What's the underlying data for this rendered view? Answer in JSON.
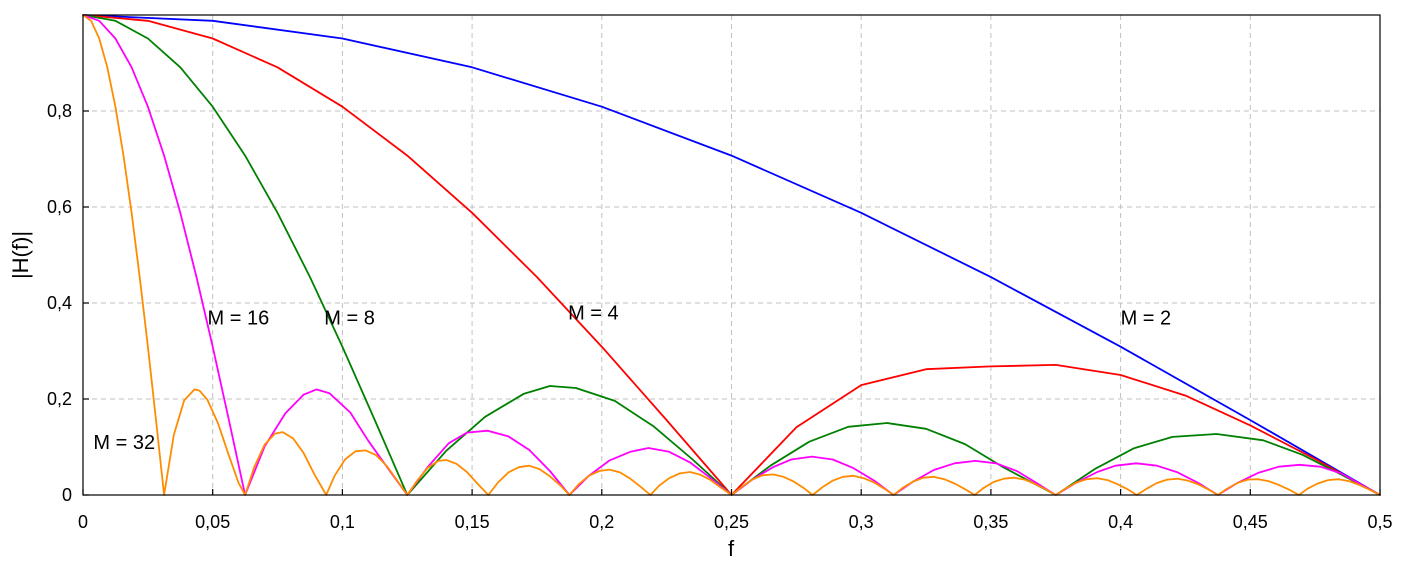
{
  "chart_data": {
    "type": "line",
    "xlabel": "f",
    "ylabel": "|H(f)|",
    "xlim": [
      0,
      0.5
    ],
    "ylim": [
      0,
      1
    ],
    "grid": true,
    "x_ticks": [
      {
        "value": 0,
        "label": "0"
      },
      {
        "value": 0.05,
        "label": "0,05"
      },
      {
        "value": 0.1,
        "label": "0,1"
      },
      {
        "value": 0.15,
        "label": "0,15"
      },
      {
        "value": 0.2,
        "label": "0,2"
      },
      {
        "value": 0.25,
        "label": "0,25"
      },
      {
        "value": 0.3,
        "label": "0,3"
      },
      {
        "value": 0.35,
        "label": "0,35"
      },
      {
        "value": 0.4,
        "label": "0,4"
      },
      {
        "value": 0.45,
        "label": "0,45"
      },
      {
        "value": 0.5,
        "label": "0,5"
      }
    ],
    "y_ticks": [
      {
        "value": 0,
        "label": "0"
      },
      {
        "value": 0.2,
        "label": "0,2"
      },
      {
        "value": 0.4,
        "label": "0,4"
      },
      {
        "value": 0.6,
        "label": "0,6"
      },
      {
        "value": 0.8,
        "label": "0,8"
      }
    ],
    "series": [
      {
        "name": "M = 2",
        "M": 2,
        "color": "#0000ff",
        "x": [
          0,
          0.05,
          0.1,
          0.15,
          0.2,
          0.25,
          0.3,
          0.35,
          0.4,
          0.45,
          0.5
        ],
        "y": [
          1.0,
          0.988,
          0.951,
          0.891,
          0.809,
          0.707,
          0.588,
          0.454,
          0.309,
          0.156,
          0.0
        ],
        "label_at": [
          0.4,
          0.37
        ]
      },
      {
        "name": "M = 4",
        "M": 4,
        "color": "#ff0000",
        "x": [
          0,
          0.025,
          0.05,
          0.075,
          0.1,
          0.125,
          0.15,
          0.175,
          0.2,
          0.225,
          0.25,
          0.275,
          0.3,
          0.325,
          0.35,
          0.375,
          0.4,
          0.425,
          0.45,
          0.475,
          0.5
        ],
        "y": [
          1.0,
          0.988,
          0.951,
          0.891,
          0.809,
          0.707,
          0.588,
          0.454,
          0.309,
          0.156,
          0.0,
          0.141,
          0.229,
          0.262,
          0.268,
          0.271,
          0.25,
          0.207,
          0.145,
          0.075,
          0.0
        ],
        "label_at": [
          0.187,
          0.38
        ]
      },
      {
        "name": "M = 8",
        "M": 8,
        "color": "#008000",
        "x": [
          0,
          0.0125,
          0.025,
          0.0375,
          0.05,
          0.0625,
          0.075,
          0.0875,
          0.1,
          0.1125,
          0.125,
          0.14,
          0.155,
          0.17,
          0.18,
          0.19,
          0.205,
          0.22,
          0.235,
          0.25,
          0.265,
          0.28,
          0.295,
          0.31,
          0.325,
          0.34,
          0.355,
          0.375,
          0.39,
          0.405,
          0.42,
          0.437,
          0.455,
          0.47,
          0.485,
          0.5
        ],
        "y": [
          1.0,
          0.988,
          0.951,
          0.891,
          0.809,
          0.707,
          0.588,
          0.454,
          0.309,
          0.156,
          0.0,
          0.092,
          0.163,
          0.211,
          0.227,
          0.223,
          0.196,
          0.143,
          0.074,
          0.0,
          0.061,
          0.111,
          0.142,
          0.15,
          0.138,
          0.106,
          0.057,
          0.0,
          0.054,
          0.097,
          0.121,
          0.127,
          0.114,
          0.084,
          0.043,
          0.0
        ],
        "label_at": [
          0.093,
          0.37
        ]
      },
      {
        "name": "M = 16",
        "M": 16,
        "color": "#ff00ff",
        "x": [
          0,
          0.00625,
          0.0125,
          0.01875,
          0.025,
          0.03125,
          0.0375,
          0.04375,
          0.05,
          0.05625,
          0.0625,
          0.07,
          0.078,
          0.085,
          0.09,
          0.095,
          0.103,
          0.11,
          0.118,
          0.125,
          0.133,
          0.141,
          0.148,
          0.156,
          0.164,
          0.172,
          0.18,
          0.1875,
          0.195,
          0.203,
          0.211,
          0.218,
          0.226,
          0.234,
          0.242,
          0.25,
          0.258,
          0.266,
          0.273,
          0.281,
          0.289,
          0.297,
          0.305,
          0.3125,
          0.32,
          0.328,
          0.336,
          0.344,
          0.352,
          0.36,
          0.367,
          0.375,
          0.383,
          0.391,
          0.398,
          0.406,
          0.414,
          0.422,
          0.43,
          0.4375,
          0.445,
          0.453,
          0.461,
          0.469,
          0.477,
          0.485,
          0.492,
          0.5
        ],
        "y": [
          1.0,
          0.988,
          0.951,
          0.891,
          0.809,
          0.707,
          0.588,
          0.454,
          0.309,
          0.156,
          0.0,
          0.101,
          0.17,
          0.209,
          0.22,
          0.212,
          0.172,
          0.113,
          0.052,
          0.0,
          0.059,
          0.108,
          0.13,
          0.134,
          0.122,
          0.094,
          0.05,
          0.0,
          0.04,
          0.072,
          0.09,
          0.098,
          0.09,
          0.068,
          0.035,
          0.0,
          0.032,
          0.058,
          0.074,
          0.08,
          0.074,
          0.056,
          0.03,
          0.0,
          0.028,
          0.052,
          0.066,
          0.071,
          0.066,
          0.05,
          0.027,
          0.0,
          0.026,
          0.048,
          0.061,
          0.066,
          0.061,
          0.047,
          0.025,
          0.0,
          0.025,
          0.046,
          0.059,
          0.063,
          0.059,
          0.045,
          0.024,
          0.0
        ],
        "label_at": [
          0.048,
          0.37
        ]
      },
      {
        "name": "M = 32",
        "M": 32,
        "color": "#ff8c00",
        "x": [
          0,
          0.003125,
          0.00625,
          0.009375,
          0.0125,
          0.015625,
          0.01875,
          0.021875,
          0.025,
          0.028125,
          0.03125,
          0.035,
          0.039,
          0.043,
          0.045,
          0.048,
          0.052,
          0.056,
          0.06,
          0.0625,
          0.066,
          0.07,
          0.074,
          0.077,
          0.081,
          0.085,
          0.089,
          0.09375,
          0.097,
          0.101,
          0.105,
          0.109,
          0.113,
          0.117,
          0.121,
          0.125,
          0.129,
          0.133,
          0.137,
          0.14,
          0.144,
          0.148,
          0.152,
          0.15625,
          0.16,
          0.164,
          0.168,
          0.172,
          0.176,
          0.18,
          0.184,
          0.1875,
          0.191,
          0.195,
          0.199,
          0.203,
          0.207,
          0.211,
          0.215,
          0.21875,
          0.222,
          0.226,
          0.23,
          0.234,
          0.238,
          0.242,
          0.246,
          0.25,
          0.254,
          0.258,
          0.262,
          0.266,
          0.27,
          0.274,
          0.278,
          0.28125,
          0.285,
          0.289,
          0.293,
          0.297,
          0.301,
          0.305,
          0.309,
          0.3125,
          0.316,
          0.32,
          0.324,
          0.328,
          0.332,
          0.336,
          0.34,
          0.34375,
          0.347,
          0.351,
          0.355,
          0.359,
          0.363,
          0.367,
          0.371,
          0.375,
          0.379,
          0.383,
          0.387,
          0.391,
          0.395,
          0.399,
          0.403,
          0.40625,
          0.41,
          0.414,
          0.418,
          0.422,
          0.426,
          0.43,
          0.434,
          0.4375,
          0.441,
          0.445,
          0.449,
          0.453,
          0.457,
          0.461,
          0.465,
          0.46875,
          0.472,
          0.476,
          0.48,
          0.484,
          0.488,
          0.492,
          0.496,
          0.5
        ],
        "y": [
          1.0,
          0.988,
          0.951,
          0.891,
          0.809,
          0.707,
          0.588,
          0.454,
          0.309,
          0.156,
          0.0,
          0.125,
          0.197,
          0.22,
          0.217,
          0.198,
          0.15,
          0.086,
          0.025,
          0.0,
          0.058,
          0.105,
          0.128,
          0.131,
          0.118,
          0.088,
          0.045,
          0.0,
          0.04,
          0.074,
          0.091,
          0.093,
          0.083,
          0.061,
          0.031,
          0.0,
          0.031,
          0.057,
          0.071,
          0.073,
          0.065,
          0.048,
          0.024,
          0.0,
          0.026,
          0.047,
          0.058,
          0.061,
          0.054,
          0.039,
          0.02,
          0.0,
          0.022,
          0.04,
          0.05,
          0.053,
          0.047,
          0.034,
          0.017,
          0.0,
          0.019,
          0.035,
          0.045,
          0.048,
          0.042,
          0.031,
          0.015,
          0.0,
          0.017,
          0.032,
          0.041,
          0.043,
          0.038,
          0.028,
          0.014,
          0.0,
          0.016,
          0.03,
          0.038,
          0.04,
          0.035,
          0.026,
          0.013,
          0.0,
          0.015,
          0.028,
          0.036,
          0.038,
          0.033,
          0.024,
          0.012,
          0.0,
          0.014,
          0.027,
          0.034,
          0.036,
          0.032,
          0.023,
          0.012,
          0.0,
          0.014,
          0.026,
          0.033,
          0.035,
          0.031,
          0.022,
          0.011,
          0.0,
          0.013,
          0.025,
          0.032,
          0.034,
          0.03,
          0.022,
          0.011,
          0.0,
          0.013,
          0.025,
          0.032,
          0.033,
          0.029,
          0.021,
          0.011,
          0.0,
          0.013,
          0.024,
          0.031,
          0.033,
          0.029,
          0.021,
          0.011,
          0.0
        ],
        "label_at": [
          0.004,
          0.11
        ]
      }
    ]
  }
}
